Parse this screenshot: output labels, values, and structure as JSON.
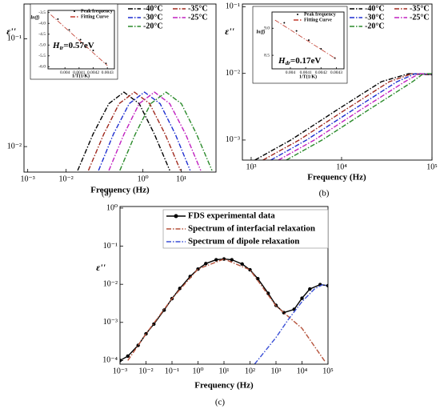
{
  "chart_data": [
    {
      "type": "line",
      "caption": "(a)",
      "x_label": "Frequency (Hz)",
      "y_label": "ε''",
      "xlog": true,
      "ylog": true,
      "xlim": [
        0.0008,
        80
      ],
      "ylim": [
        0.0058,
        0.21
      ],
      "xticks": [
        {
          "value": 0.001,
          "label": "10⁻³"
        },
        {
          "value": 0.01,
          "label": "10⁻²"
        },
        {
          "value": 1,
          "label": "10⁰"
        },
        {
          "value": 10,
          "label": "10¹"
        }
      ],
      "yticks": [
        {
          "value": 0.01,
          "label": "10⁻²"
        },
        {
          "value": 0.1,
          "label": "10⁻¹"
        }
      ],
      "series": [
        {
          "name": "-40°C",
          "color": "#000000",
          "style": "dashdot",
          "x": [
            0.02,
            0.05,
            0.13,
            0.32,
            0.8,
            2,
            5
          ],
          "values": [
            0.006,
            0.013,
            0.025,
            0.032,
            0.025,
            0.013,
            0.006
          ]
        },
        {
          "name": "-35°C",
          "color": "#a0291e",
          "style": "dashdot",
          "x": [
            0.038,
            0.095,
            0.24,
            0.6,
            1.5,
            3.8,
            9.5
          ],
          "values": [
            0.006,
            0.013,
            0.025,
            0.032,
            0.025,
            0.013,
            0.006
          ]
        },
        {
          "name": "-30°C",
          "color": "#1f2fd0",
          "style": "dashdot",
          "x": [
            0.07,
            0.17,
            0.44,
            1.1,
            2.8,
            7,
            17
          ],
          "values": [
            0.006,
            0.013,
            0.025,
            0.032,
            0.025,
            0.013,
            0.006
          ]
        },
        {
          "name": "-25°C",
          "color": "#c020c0",
          "style": "dashdot",
          "x": [
            0.13,
            0.32,
            0.8,
            2,
            5,
            13,
            32
          ],
          "values": [
            0.006,
            0.013,
            0.025,
            0.032,
            0.025,
            0.013,
            0.006
          ]
        },
        {
          "name": "-20°C",
          "color": "#2a8a2a",
          "style": "dashdot",
          "x": [
            0.25,
            0.63,
            1.6,
            4,
            10,
            25,
            63
          ],
          "values": [
            0.006,
            0.013,
            0.025,
            0.032,
            0.025,
            0.013,
            0.006
          ]
        }
      ]
    },
    {
      "type": "line",
      "x_label": "1/T(1/K)",
      "y_label": "ln(f)",
      "annotation": [
        "H",
        "tr",
        "=0.57eV"
      ],
      "xlim": [
        0.00388,
        0.00435
      ],
      "ylim": [
        -6.1,
        -3.4
      ],
      "xticks": [
        0.004,
        0.0041,
        0.0042,
        0.0043
      ],
      "yticks": [
        -3.5,
        {
          "value": -4,
          "label": "-4.0"
        },
        -4.5,
        {
          "value": -5,
          "label": "-5.0"
        },
        -5.5,
        {
          "value": -6,
          "label": "-6.0"
        }
      ],
      "series": [
        {
          "name": "Peak frequency",
          "color": "#000000",
          "style": "points",
          "x": [
            0.00395,
            0.00403,
            0.00411,
            0.0042,
            0.00429
          ],
          "values": [
            -3.8,
            -4.3,
            -4.75,
            -5.25,
            -5.85
          ]
        },
        {
          "name": "Fitting Curve",
          "color": "#c0392b",
          "style": "dashdot",
          "x": [
            0.0039,
            0.0043
          ],
          "values": [
            -3.6,
            -5.95
          ]
        }
      ]
    },
    {
      "type": "line",
      "caption": "(b)",
      "x_label": "Frequency (Hz)",
      "y_label": "ε''",
      "xlog": true,
      "ylog": true,
      "xlim": [
        800,
        100000
      ],
      "ylim": [
        0.0005,
        0.11
      ],
      "xticks": [
        {
          "value": 1000,
          "label": "10³"
        },
        {
          "value": 10000,
          "label": "10⁴"
        },
        {
          "value": 100000,
          "label": "10⁵"
        }
      ],
      "yticks": [
        {
          "value": 0.001,
          "label": "10⁻³"
        },
        {
          "value": 0.01,
          "label": "10⁻²"
        },
        {
          "value": 0.1,
          "label": "10⁻¹"
        }
      ],
      "series": [
        {
          "name": "-40°C",
          "color": "#000000",
          "style": "dashdot",
          "x": [
            1100,
            2750,
            8800,
            27500,
            55000,
            100000
          ],
          "values": [
            0.0005,
            0.001,
            0.0028,
            0.0075,
            0.0099,
            0.0095
          ]
        },
        {
          "name": "-35°C",
          "color": "#a0291e",
          "style": "dashdot",
          "x": [
            1350,
            3400,
            10800,
            33700,
            60000,
            100000
          ],
          "values": [
            0.0005,
            0.001,
            0.0028,
            0.0075,
            0.0099,
            0.0096
          ]
        },
        {
          "name": "-30°C",
          "color": "#1f2fd0",
          "style": "dashdot",
          "x": [
            1650,
            4100,
            13200,
            41000,
            65000,
            100000
          ],
          "values": [
            0.0005,
            0.001,
            0.0028,
            0.0075,
            0.0099,
            0.0097
          ]
        },
        {
          "name": "-25°C",
          "color": "#c020c0",
          "style": "dashdot",
          "x": [
            2000,
            5000,
            16000,
            50000,
            72000,
            100000
          ],
          "values": [
            0.0005,
            0.001,
            0.0028,
            0.0075,
            0.0099,
            0.0098
          ]
        },
        {
          "name": "-20°C",
          "color": "#2a8a2a",
          "style": "dashdot",
          "x": [
            2450,
            6100,
            19600,
            61000,
            80000,
            100000
          ],
          "values": [
            0.0005,
            0.001,
            0.0028,
            0.0075,
            0.0099,
            0.0099
          ]
        }
      ]
    },
    {
      "type": "line",
      "x_label": "1/T(1/K)",
      "y_label": "ln(f)",
      "annotation": [
        "H",
        "dr",
        "=0.17eV"
      ],
      "xlim": [
        0.00388,
        0.00435
      ],
      "ylim": [
        8.25,
        9.3
      ],
      "xticks": [
        0.004,
        0.0041,
        0.0042,
        0.0043
      ],
      "yticks": [
        {
          "value": 9,
          "label": "9.0"
        },
        8.5
      ],
      "series": [
        {
          "name": "Peak frequency",
          "color": "#000000",
          "style": "points",
          "x": [
            0.00396,
            0.00404,
            0.00412,
            0.0042,
            0.00429
          ],
          "values": [
            9.1,
            8.95,
            8.78,
            8.62,
            8.45
          ]
        },
        {
          "name": "Fitting Curve",
          "color": "#c0392b",
          "style": "dashdot",
          "x": [
            0.0039,
            0.0043
          ],
          "values": [
            9.15,
            8.43
          ]
        }
      ]
    },
    {
      "type": "line",
      "caption": "(c)",
      "x_label": "Frequency (Hz)",
      "y_label": "ε''",
      "xlog": true,
      "ylog": true,
      "xlim": [
        0.001,
        100000
      ],
      "ylim": [
        8e-05,
        1.1
      ],
      "xticks": [
        {
          "value": 0.001,
          "label": "10⁻³"
        },
        {
          "value": 0.01,
          "label": "10⁻²"
        },
        {
          "value": 0.1,
          "label": "10⁻¹"
        },
        {
          "value": 1,
          "label": "10⁰"
        },
        {
          "value": 10,
          "label": "10¹"
        },
        {
          "value": 100,
          "label": "10²"
        },
        {
          "value": 1000,
          "label": "10³"
        },
        {
          "value": 10000,
          "label": "10⁴"
        },
        {
          "value": 100000,
          "label": "10⁵"
        }
      ],
      "yticks": [
        {
          "value": 0.0001,
          "label": "10⁻⁴"
        },
        {
          "value": 0.001,
          "label": "10⁻³"
        },
        {
          "value": 0.01,
          "label": "10⁻²"
        },
        {
          "value": 0.1,
          "label": "10⁻¹"
        },
        {
          "value": 1,
          "label": "10⁰"
        }
      ],
      "series": [
        {
          "name": "FDS experimental data",
          "color": "#000000",
          "style": "line-dots",
          "x": [
            0.001,
            0.002,
            0.005,
            0.01,
            0.02,
            0.05,
            0.1,
            0.2,
            0.5,
            1,
            2,
            5,
            10,
            20,
            50,
            100,
            200,
            500,
            1000,
            2000,
            5000,
            10000,
            20000,
            50000,
            100000
          ],
          "values": [
            0.0001,
            0.00013,
            0.00025,
            0.0005,
            0.0009,
            0.0021,
            0.0042,
            0.0078,
            0.016,
            0.025,
            0.035,
            0.044,
            0.046,
            0.044,
            0.034,
            0.024,
            0.014,
            0.0058,
            0.0028,
            0.0018,
            0.0022,
            0.0043,
            0.0075,
            0.0098,
            0.0092
          ]
        },
        {
          "name": "Spectrum of interfacial relaxation",
          "color": "#b5523b",
          "style": "dashdot",
          "x": [
            0.002,
            0.01,
            0.1,
            1,
            10,
            100,
            1000,
            10000,
            80000
          ],
          "values": [
            0.0001,
            0.0005,
            0.0042,
            0.025,
            0.046,
            0.024,
            0.0027,
            0.0007,
            9e-05
          ]
        },
        {
          "name": "Spectrum of dipole relaxation",
          "color": "#3a4fd6",
          "style": "dashdot",
          "x": [
            150,
            1000,
            3000,
            10000,
            30000,
            60000,
            100000
          ],
          "values": [
            8e-05,
            0.0004,
            0.0012,
            0.0035,
            0.0075,
            0.0097,
            0.0092
          ]
        }
      ]
    }
  ]
}
